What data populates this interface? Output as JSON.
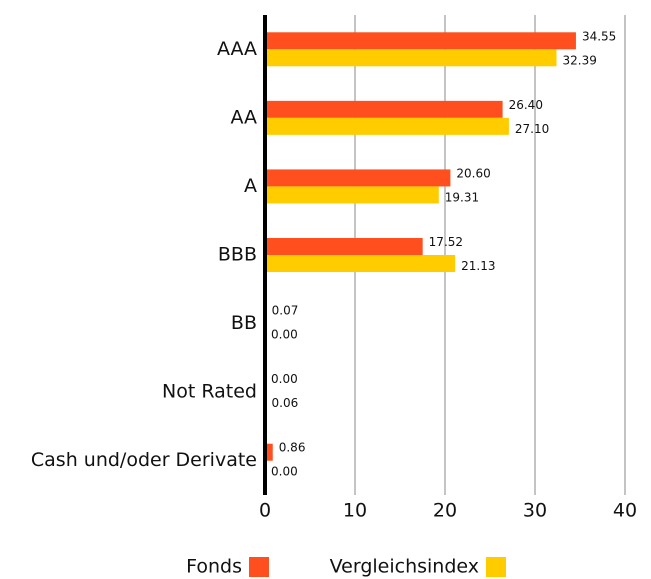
{
  "chart_data": {
    "type": "hbar",
    "categories": [
      "AAA",
      "AA",
      "A",
      "BBB",
      "BB",
      "Not Rated",
      "Cash und/oder Derivate"
    ],
    "series": [
      {
        "name": "Fonds",
        "color": "#ff4f1f",
        "values": [
          34.55,
          26.4,
          20.6,
          17.52,
          0.07,
          0,
          0.86
        ],
        "value_labels": [
          "34.55",
          "26.40",
          "20.60",
          "17.52",
          "0.07",
          "0.00",
          "0.86"
        ]
      },
      {
        "name": "Vergleichsindex",
        "color": "#ffcc00",
        "values": [
          32.39,
          27.1,
          19.31,
          21.13,
          0,
          0.06,
          0
        ],
        "value_labels": [
          "32.39",
          "27.10",
          "19.31",
          "21.13",
          "0.00",
          "0.06",
          "0.00"
        ]
      }
    ],
    "xlim": [
      0,
      40
    ],
    "xticks": [
      0,
      10,
      20,
      30,
      40
    ],
    "grid": true,
    "legend": "bottom"
  }
}
